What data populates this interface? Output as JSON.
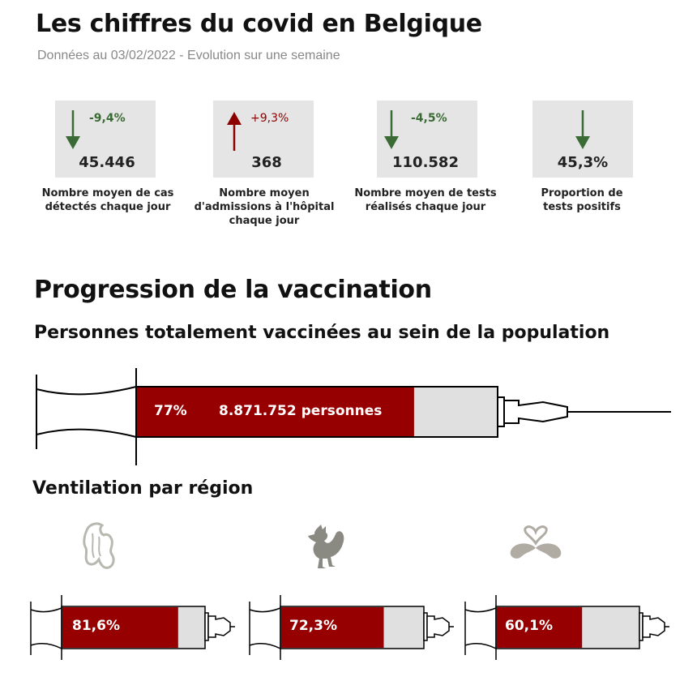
{
  "header": {
    "title": "Les chiffres du covid en Belgique",
    "subtitle": "Données au 03/02/2022 - Evolution sur une semaine"
  },
  "colors": {
    "down": "#3a6b35",
    "up": "#8c0000",
    "bar_fill": "#960000",
    "bar_empty": "#e0e0e0"
  },
  "kpis": [
    {
      "change": "-9,4%",
      "direction": "down",
      "value": "45.446",
      "label": "Nombre moyen de cas détectés chaque jour"
    },
    {
      "change": "+9,3%",
      "direction": "up",
      "value": "368",
      "label": "Nombre moyen d'admissions à l'hôpital chaque jour"
    },
    {
      "change": "-4,5%",
      "direction": "down",
      "value": "110.582",
      "label": "Nombre moyen de tests réalisés chaque jour"
    },
    {
      "change": "",
      "direction": "down",
      "value": "45,3%",
      "label": "Proportion de tests positifs"
    }
  ],
  "vaccination": {
    "title": "Progression de la vaccination",
    "subtitle": "Personnes totalement vaccinées au sein de la population",
    "pct_label": "77%",
    "pct_value": 0.77,
    "persons_label": "8.871.752 personnes"
  },
  "regions": {
    "title": "Ventilation par région",
    "items": [
      {
        "icon": "flanders-lion-icon",
        "pct_label": "81,6%",
        "pct_value": 0.816
      },
      {
        "icon": "wallonia-rooster-icon",
        "pct_label": "72,3%",
        "pct_value": 0.723
      },
      {
        "icon": "brussels-iris-icon",
        "pct_label": "60,1%",
        "pct_value": 0.601
      }
    ]
  }
}
